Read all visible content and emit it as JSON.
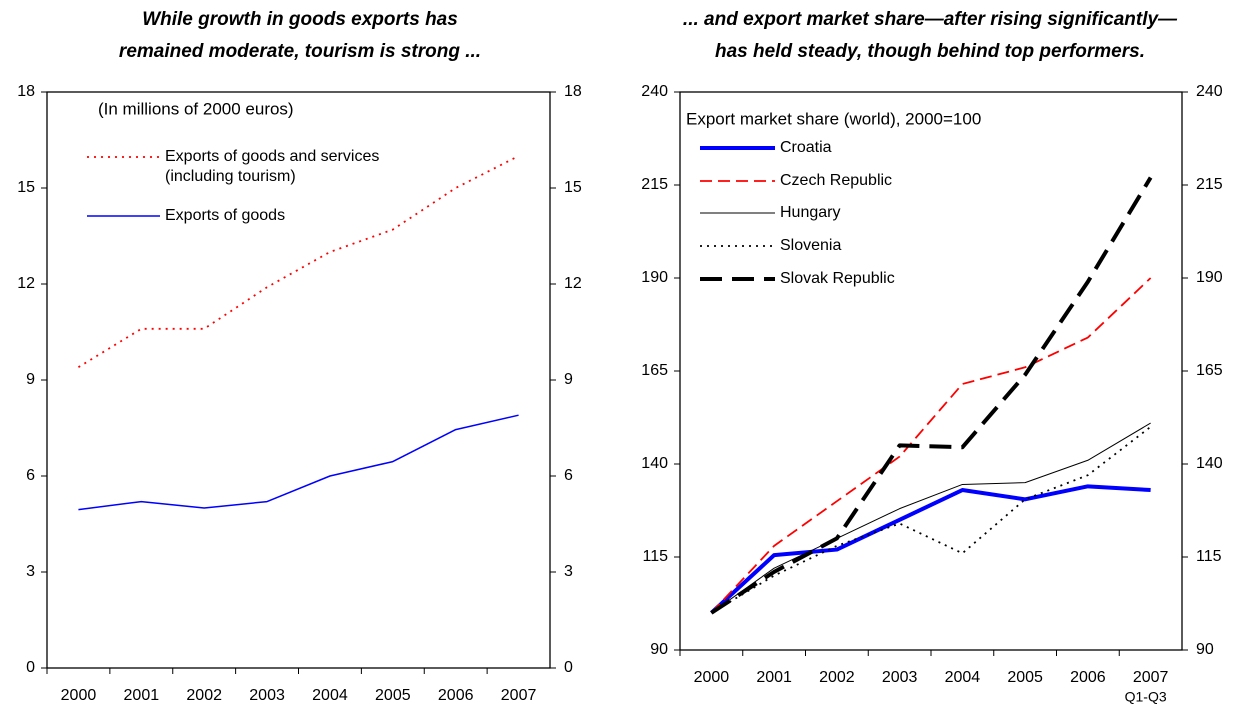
{
  "chart_data": [
    {
      "type": "line",
      "title": [
        "While growth in goods exports has",
        "remained moderate, tourism is strong ..."
      ],
      "annotation": "(In millions of 2000 euros)",
      "categories": [
        "2000",
        "2001",
        "2002",
        "2003",
        "2004",
        "2005",
        "2006",
        "2007"
      ],
      "ylim": [
        0,
        18
      ],
      "yticks": [
        0,
        3,
        6,
        9,
        12,
        15,
        18
      ],
      "series": [
        {
          "name": "Exports of goods and services (including tourism)",
          "color": "#ff0000",
          "line_style": "dotted",
          "values": [
            9.4,
            10.6,
            10.6,
            11.9,
            13.0,
            13.7,
            15.0,
            16.0
          ]
        },
        {
          "name": "Exports of goods",
          "color": "#0000ff",
          "line_style": "solid",
          "values": [
            4.95,
            5.2,
            5.0,
            5.2,
            6.0,
            6.45,
            7.45,
            7.9
          ]
        }
      ]
    },
    {
      "type": "line",
      "title": [
        "... and export market share—after rising significantly—",
        "has held steady, though behind top performers."
      ],
      "annotation": "Export market share (world), 2000=100",
      "categories": [
        "2000",
        "2001",
        "2002",
        "2003",
        "2004",
        "2005",
        "2006",
        "2007"
      ],
      "category_note": "Q1-Q3",
      "ylim": [
        90,
        240
      ],
      "yticks": [
        90,
        115,
        140,
        165,
        190,
        215,
        240
      ],
      "series": [
        {
          "name": "Croatia",
          "color": "#0000ff",
          "line_style": "solid-thick",
          "values": [
            100,
            115.5,
            117,
            125,
            133,
            130.5,
            134,
            133
          ]
        },
        {
          "name": "Czech Republic",
          "color": "#ff0000",
          "line_style": "dashed",
          "values": [
            100,
            118,
            130,
            142,
            161.5,
            166,
            174,
            190
          ]
        },
        {
          "name": "Hungary",
          "color": "#000000",
          "line_style": "solid-thin",
          "values": [
            100,
            112,
            120,
            128,
            134.5,
            135,
            141,
            151
          ]
        },
        {
          "name": "Slovenia",
          "color": "#000000",
          "line_style": "dotted",
          "values": [
            100,
            110,
            118,
            124,
            116,
            130.5,
            137,
            150
          ]
        },
        {
          "name": "Slovak Republic",
          "color": "#000000",
          "line_style": "dashed-thick",
          "values": [
            100,
            111,
            120,
            145,
            144.5,
            164,
            189,
            217
          ]
        }
      ]
    }
  ]
}
